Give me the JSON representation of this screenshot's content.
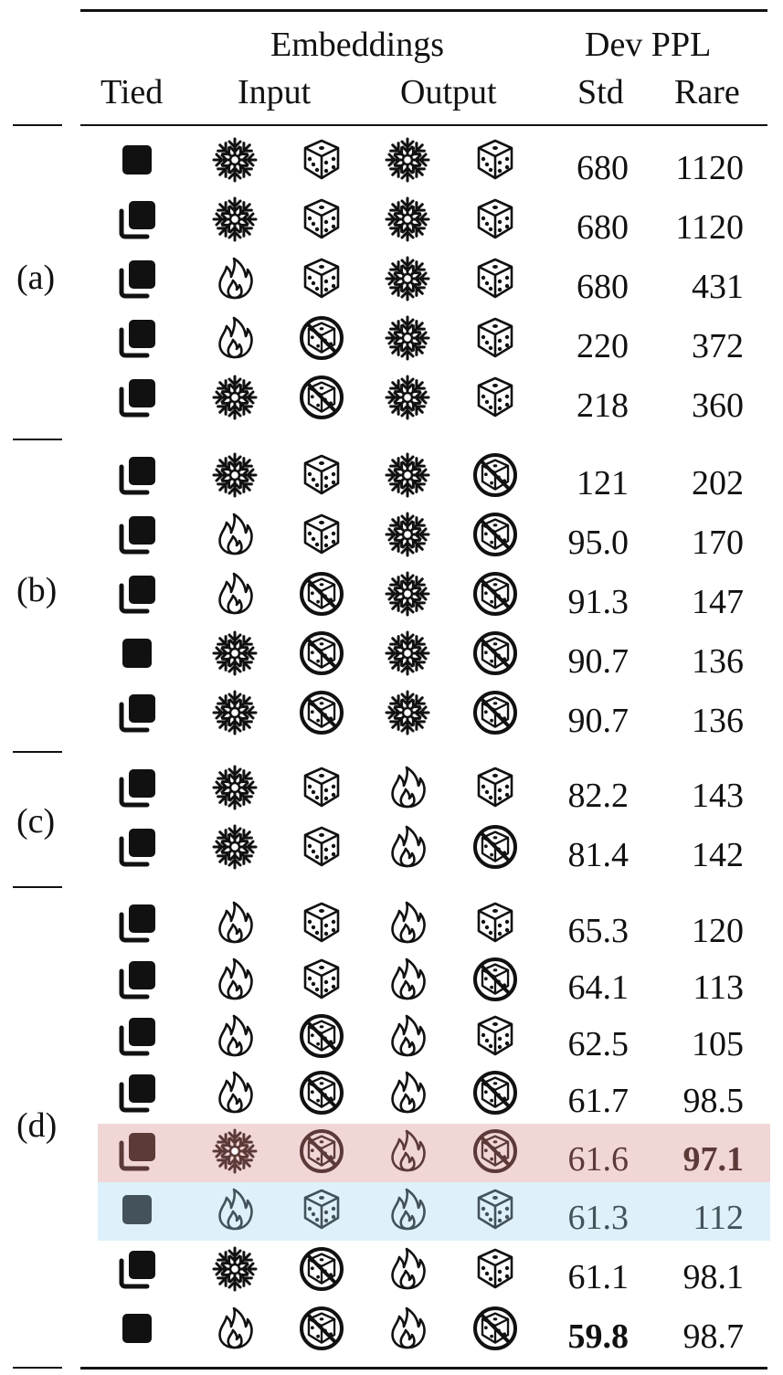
{
  "header": {
    "embeddings": "Embeddings",
    "dev_ppl": "Dev PPL",
    "tied": "Tied",
    "input": "Input",
    "output": "Output",
    "std": "Std",
    "rare": "Rare"
  },
  "groups": [
    "(a)",
    "(b)",
    "(c)",
    "(d)"
  ],
  "icons": {
    "tied_single": "single-square-icon",
    "tied_stack": "stacked-squares-icon",
    "frozen": "snowflake-icon",
    "trained": "flame-icon",
    "random": "dice-icon",
    "not_random": "crossed-dice-icon"
  },
  "highlight_colors": {
    "red": "#f1d6d6",
    "blue": "#def1fa"
  },
  "rows": [
    {
      "tied": "single",
      "in_train": "frozen",
      "in_init": "random",
      "out_train": "frozen",
      "out_init": "random",
      "std": "680",
      "rare": "1120"
    },
    {
      "tied": "stack",
      "in_train": "frozen",
      "in_init": "random",
      "out_train": "frozen",
      "out_init": "random",
      "std": "680",
      "rare": "1120"
    },
    {
      "tied": "stack",
      "in_train": "trained",
      "in_init": "random",
      "out_train": "frozen",
      "out_init": "random",
      "std": "680",
      "rare": "431"
    },
    {
      "tied": "stack",
      "in_train": "trained",
      "in_init": "not_random",
      "out_train": "frozen",
      "out_init": "random",
      "std": "220",
      "rare": "372"
    },
    {
      "tied": "stack",
      "in_train": "frozen",
      "in_init": "not_random",
      "out_train": "frozen",
      "out_init": "random",
      "std": "218",
      "rare": "360"
    },
    {
      "tied": "stack",
      "in_train": "frozen",
      "in_init": "random",
      "out_train": "frozen",
      "out_init": "not_random",
      "std": "121",
      "rare": "202"
    },
    {
      "tied": "stack",
      "in_train": "trained",
      "in_init": "random",
      "out_train": "frozen",
      "out_init": "not_random",
      "std": "95.0",
      "rare": "170"
    },
    {
      "tied": "stack",
      "in_train": "trained",
      "in_init": "not_random",
      "out_train": "frozen",
      "out_init": "not_random",
      "std": "91.3",
      "rare": "147"
    },
    {
      "tied": "single",
      "in_train": "frozen",
      "in_init": "not_random",
      "out_train": "frozen",
      "out_init": "not_random",
      "std": "90.7",
      "rare": "136"
    },
    {
      "tied": "stack",
      "in_train": "frozen",
      "in_init": "not_random",
      "out_train": "frozen",
      "out_init": "not_random",
      "std": "90.7",
      "rare": "136"
    },
    {
      "tied": "stack",
      "in_train": "frozen",
      "in_init": "random",
      "out_train": "trained",
      "out_init": "random",
      "std": "82.2",
      "rare": "143"
    },
    {
      "tied": "stack",
      "in_train": "frozen",
      "in_init": "random",
      "out_train": "trained",
      "out_init": "not_random",
      "std": "81.4",
      "rare": "142"
    },
    {
      "tied": "stack",
      "in_train": "trained",
      "in_init": "random",
      "out_train": "trained",
      "out_init": "random",
      "std": "65.3",
      "rare": "120"
    },
    {
      "tied": "stack",
      "in_train": "trained",
      "in_init": "random",
      "out_train": "trained",
      "out_init": "not_random",
      "std": "64.1",
      "rare": "113"
    },
    {
      "tied": "stack",
      "in_train": "trained",
      "in_init": "not_random",
      "out_train": "trained",
      "out_init": "random",
      "std": "62.5",
      "rare": "105"
    },
    {
      "tied": "stack",
      "in_train": "trained",
      "in_init": "not_random",
      "out_train": "trained",
      "out_init": "not_random",
      "std": "61.7",
      "rare": "98.5"
    },
    {
      "tied": "stack",
      "in_train": "frozen",
      "in_init": "not_random",
      "out_train": "trained",
      "out_init": "not_random",
      "std": "61.6",
      "rare": "97.1",
      "highlight": "red",
      "bold": "rare"
    },
    {
      "tied": "single",
      "in_train": "trained",
      "in_init": "random",
      "out_train": "trained",
      "out_init": "random",
      "std": "61.3",
      "rare": "112",
      "highlight": "blue"
    },
    {
      "tied": "stack",
      "in_train": "frozen",
      "in_init": "not_random",
      "out_train": "trained",
      "out_init": "random",
      "std": "61.1",
      "rare": "98.1"
    },
    {
      "tied": "single",
      "in_train": "trained",
      "in_init": "not_random",
      "out_train": "trained",
      "out_init": "not_random",
      "std": "59.8",
      "rare": "98.7",
      "bold": "std"
    }
  ]
}
